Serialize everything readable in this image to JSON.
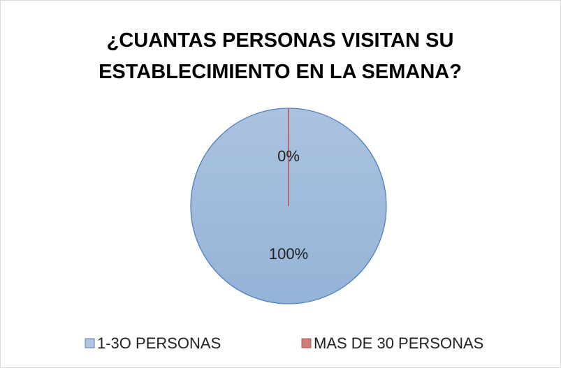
{
  "chart_data": {
    "type": "pie",
    "title": "¿CUANTAS PERSONAS VISITAN SU ESTABLECIMIENTO EN LA SEMANA?",
    "categories": [
      "1-3O PERSONAS",
      "MAS DE 30 PERSONAS"
    ],
    "values": [
      100,
      0
    ],
    "value_labels": [
      "100%",
      "0%"
    ],
    "colors": [
      "#95b3d7",
      "#c0504d"
    ],
    "legend": "bottom"
  }
}
